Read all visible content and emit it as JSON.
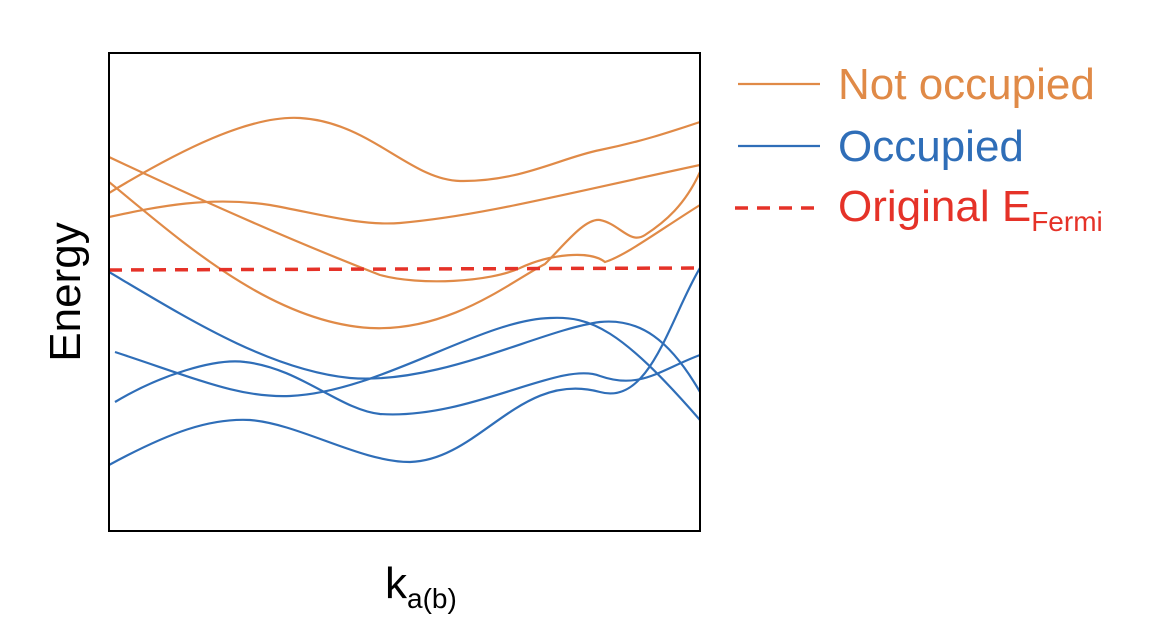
{
  "axes": {
    "ylabel": "Energy",
    "xlabel_main": "k",
    "xlabel_sub": "a(b)"
  },
  "legend": {
    "not_occupied": "Not occupied",
    "occupied": "Occupied",
    "fermi_main": "Original E",
    "fermi_sub": "Fermi"
  },
  "colors": {
    "not_occupied": "#e08a47",
    "occupied": "#2f6eb8",
    "fermi": "#e53228",
    "frame": "#000000"
  }
}
